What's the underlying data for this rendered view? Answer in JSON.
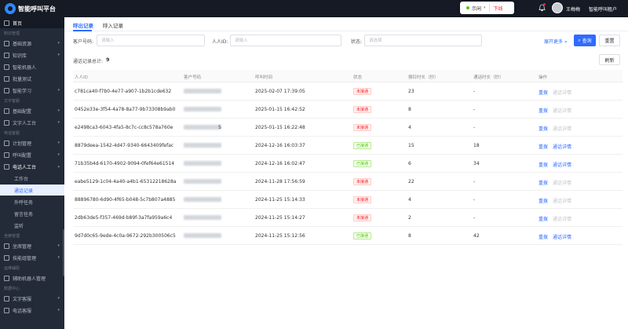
{
  "topbar": {
    "app_title": "智能呼叫平台",
    "status_label": "示闲",
    "logout_label": "下线",
    "username": "王梅梅",
    "tenant_name": "智能呼叫租户"
  },
  "sidebar": [
    {
      "kind": "item",
      "label": "首页",
      "active": true
    },
    {
      "kind": "group",
      "label": "知识管理"
    },
    {
      "kind": "item",
      "label": "基础资源",
      "arrow": "▾"
    },
    {
      "kind": "item",
      "label": "知识库",
      "arrow": "▾"
    },
    {
      "kind": "item",
      "label": "智能机器人"
    },
    {
      "kind": "item",
      "label": "批量测试"
    },
    {
      "kind": "item",
      "label": "智能学习",
      "arrow": "▾"
    },
    {
      "kind": "group",
      "label": "文字客服"
    },
    {
      "kind": "item",
      "label": "基础配置",
      "arrow": "▾"
    },
    {
      "kind": "item",
      "label": "文字人工台",
      "arrow": "▾"
    },
    {
      "kind": "group",
      "label": "电话客服"
    },
    {
      "kind": "item",
      "label": "计划管理",
      "arrow": "▾"
    },
    {
      "kind": "item",
      "label": "呼叫配置",
      "arrow": "▾"
    },
    {
      "kind": "item",
      "label": "电话人工台",
      "arrow": "▴",
      "open": true
    },
    {
      "kind": "sub",
      "label": "工作台"
    },
    {
      "kind": "sub",
      "label": "通话记录",
      "selected": true
    },
    {
      "kind": "sub",
      "label": "外呼任务"
    },
    {
      "kind": "sub",
      "label": "留言任务"
    },
    {
      "kind": "sub",
      "label": "监听"
    },
    {
      "kind": "group",
      "label": "坐席管理"
    },
    {
      "kind": "item",
      "label": "坐席管理",
      "arrow": "▾"
    },
    {
      "kind": "item",
      "label": "技能组管理",
      "arrow": "▾"
    },
    {
      "kind": "group",
      "label": "运维辅助"
    },
    {
      "kind": "item",
      "label": "辅助机器人管理"
    },
    {
      "kind": "group",
      "label": "数据中心"
    },
    {
      "kind": "item",
      "label": "文字客服",
      "arrow": "▾"
    },
    {
      "kind": "item",
      "label": "电话客服",
      "arrow": "▾"
    }
  ],
  "tabs": [
    {
      "label": "呼出记录",
      "active": true
    },
    {
      "label": "呼入记录",
      "active": false
    }
  ],
  "filters": {
    "phone_label": "客户号码:",
    "phone_placeholder": "请输入",
    "id_label": "人人ID:",
    "id_placeholder": "请输入",
    "status_label": "状态:",
    "status_placeholder": "请选择",
    "expand_label": "展开更多",
    "search_label": "查询",
    "reset_label": "重置"
  },
  "summary": {
    "count_label": "通话记录总计:",
    "count_value": "9",
    "refresh_label": "刷新"
  },
  "table": {
    "columns": [
      "人人ID",
      "客户号码",
      "呼叫时间",
      "状态",
      "振铃时长（秒）",
      "通话时长（秒）",
      "操作"
    ],
    "rows": [
      {
        "id": "c781ca40-f7b0-4e77-a907-1b2b1cde632",
        "phone_visible": "",
        "time": "2025-02-07 17:39:05",
        "status": "未接通",
        "ok": false,
        "ring": "23",
        "talk": "-",
        "redial": "重拨",
        "detail": "通话详情"
      },
      {
        "id": "0452e33e-3f54-4a78-8a77-9b73308b9ab0",
        "phone_visible": "",
        "time": "2025-01-15 16:42:52",
        "status": "未接通",
        "ok": false,
        "ring": "8",
        "talk": "-",
        "redial": "重拨",
        "detail": "通话详情"
      },
      {
        "id": "e2498ca3-6043-4fa5-8c7c-cc8c578a760e",
        "phone_visible": "5",
        "time": "2025-01-15 16:22:48",
        "status": "未接通",
        "ok": false,
        "ring": "4",
        "talk": "-",
        "redial": "重拨",
        "detail": "通话详情"
      },
      {
        "id": "8879deea-1542-4d47-9340-6643409fefac",
        "phone_visible": "",
        "time": "2024-12-16 16:03:37",
        "status": "已接通",
        "ok": true,
        "ring": "15",
        "talk": "18",
        "redial": "重拨",
        "detail": "通话详情"
      },
      {
        "id": "71b35b4d-6170-4902-9094-0fef64e61514",
        "phone_visible": "",
        "time": "2024-12-16 16:02:47",
        "status": "已接通",
        "ok": true,
        "ring": "6",
        "talk": "34",
        "redial": "重拨",
        "detail": "通话详情"
      },
      {
        "id": "eabe5129-1c04-4a40-a4b1-65312218628a",
        "phone_visible": "",
        "time": "2024-11-28 17:56:59",
        "status": "未接通",
        "ok": false,
        "ring": "22",
        "talk": "-",
        "redial": "重拨",
        "detail": "通话详情"
      },
      {
        "id": "88896780-6d90-4f65-b048-5c7b807a4885",
        "phone_visible": "",
        "time": "2024-11-25 15:14:33",
        "status": "未接通",
        "ok": false,
        "ring": "4",
        "talk": "-",
        "redial": "重拨",
        "detail": "通话详情"
      },
      {
        "id": "2db63de5-f357-469d-b89f-3a7fa959a6c4",
        "phone_visible": "",
        "time": "2024-11-25 15:14:27",
        "status": "未接通",
        "ok": false,
        "ring": "2",
        "talk": "-",
        "redial": "重拨",
        "detail": "通话详情"
      },
      {
        "id": "9d7d0c65-9ede-4c0a-9672-292b300506c5",
        "phone_visible": "",
        "time": "2024-11-25 15:12:56",
        "status": "已接通",
        "ok": true,
        "ring": "8",
        "talk": "42",
        "redial": "重拨",
        "detail": "通话详情"
      }
    ]
  },
  "colors": {
    "primary": "#2f6bff",
    "sidebar_bg": "#232a38",
    "topbar_bg": "#151a24"
  }
}
